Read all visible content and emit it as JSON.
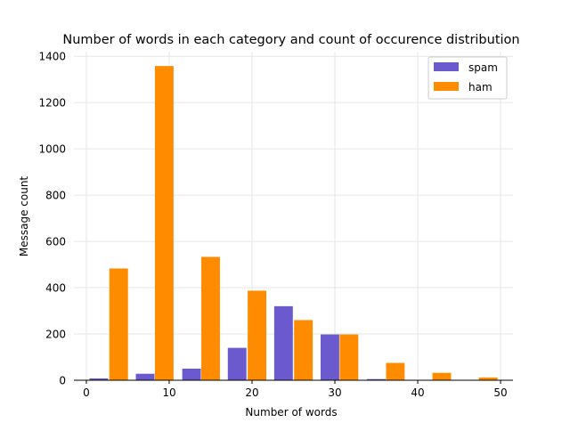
{
  "chart_data": {
    "type": "bar",
    "title": "Number of words in each category and count of occurence distribution",
    "xlabel": "Number of words",
    "ylabel": "Message count",
    "xlim": [
      -1.5,
      51.5
    ],
    "ylim": [
      0,
      1420
    ],
    "xticks": [
      0,
      10,
      20,
      30,
      40,
      50
    ],
    "yticks": [
      0,
      200,
      400,
      600,
      800,
      1000,
      1200,
      1400
    ],
    "grid": true,
    "legend_position": "top-right",
    "bar_width": 2.25,
    "series": [
      {
        "name": "spam",
        "color": "#6a5acd",
        "x": [
          1.5,
          7.1,
          12.7,
          18.2,
          23.8,
          29.4,
          35.0,
          40.6,
          46.1
        ],
        "values": [
          8,
          28,
          50,
          140,
          320,
          198,
          5,
          0,
          0
        ]
      },
      {
        "name": "ham",
        "color": "#ff8c00",
        "x": [
          3.9,
          9.4,
          15.0,
          20.6,
          26.2,
          31.7,
          37.3,
          42.9,
          48.5
        ],
        "values": [
          483,
          1358,
          533,
          387,
          260,
          198,
          75,
          32,
          12
        ]
      }
    ]
  }
}
